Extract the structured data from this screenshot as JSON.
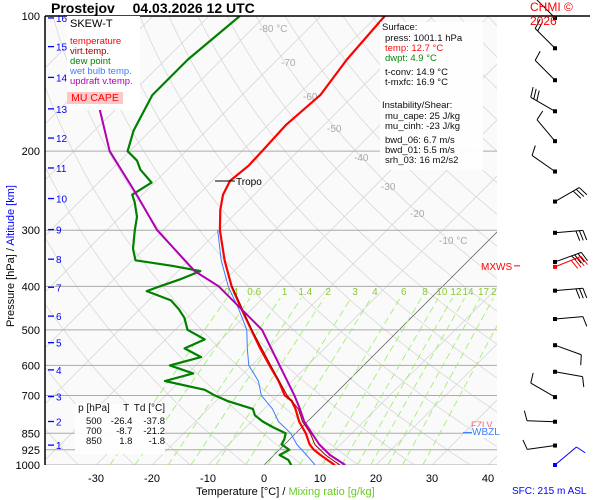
{
  "header": {
    "station": "Prostejov",
    "datetime": "04.03.2026 12 UTC",
    "copyright": "CHMI © 2026"
  },
  "legend": {
    "title": "SKEW-T",
    "items": [
      {
        "label": "temperature",
        "color": "#ff0000"
      },
      {
        "label": "virt.temp.",
        "color": "#a00000"
      },
      {
        "label": "dew point",
        "color": "#008000"
      },
      {
        "label": "wet bulb temp.",
        "color": "#3a7dff"
      },
      {
        "label": "updraft v.temp.",
        "color": "#b000b0"
      }
    ],
    "badge": "MU CAPE"
  },
  "surface": {
    "title": "Surface:",
    "press": "press: 1001.1 hPa",
    "temp": "temp: 12.7 °C",
    "dwpt": "dwpt: 4.9 °C",
    "tconv": "t-conv: 14.9 °C",
    "tmxfc": "t-mxfc: 16.9 °C"
  },
  "instability": {
    "title": "Instability/Shear:",
    "mu_cape": "mu_cape: 25 J/kg",
    "mu_cinh": "mu_cinh: -23 J/kg",
    "bwd_06": "bwd_06: 6.7 m/s",
    "bwd_01": "bwd_01: 5.5 m/s",
    "srh_03": "srh_03: 16 m2/s2"
  },
  "table": {
    "headers": [
      "p [hPa]",
      "T",
      "Td [°C]"
    ],
    "rows": [
      [
        "500",
        "-26.4",
        "-37.8"
      ],
      [
        "700",
        "-8.7",
        "-21.2"
      ],
      [
        "850",
        "1.8",
        "-1.8"
      ]
    ]
  },
  "annotations": {
    "tropo": "Tropo",
    "mxws": "MXWS",
    "fzlv": "FZLV",
    "wbzl": "WBZL",
    "sfc": "SFC: 215 m ASL"
  },
  "chart_data": {
    "type": "line",
    "title": "Prostejov 04.03.2026 12 UTC",
    "xlabel": "Temperature [°C]",
    "xlabel_sep": "/",
    "xlabel2": "Mixing ratio [g/kg]",
    "ylabel": "Pressure [hPa]",
    "ylabel_sep": "/",
    "ylabel2": "Altitude [km]",
    "xlim": [
      -37,
      44
    ],
    "ylim": [
      1000,
      100
    ],
    "x_ticks": [
      -30,
      -20,
      -10,
      0,
      10,
      20,
      30,
      40
    ],
    "pressure_ticks": [
      100,
      200,
      300,
      400,
      500,
      600,
      700,
      850,
      925,
      1000
    ],
    "altitude_ticks": [
      {
        "km": 16,
        "p": 101
      },
      {
        "km": 15,
        "p": 117
      },
      {
        "km": 14,
        "p": 137
      },
      {
        "km": 13,
        "p": 161
      },
      {
        "km": 12,
        "p": 187
      },
      {
        "km": 11,
        "p": 218
      },
      {
        "km": 10,
        "p": 255
      },
      {
        "km": 9,
        "p": 299
      },
      {
        "km": 8,
        "p": 348
      },
      {
        "km": 7,
        "p": 402
      },
      {
        "km": 6,
        "p": 466
      },
      {
        "km": 5,
        "p": 534
      },
      {
        "km": 4,
        "p": 614
      },
      {
        "km": 3,
        "p": 704
      },
      {
        "km": 2,
        "p": 800
      },
      {
        "km": 1,
        "p": 903
      }
    ],
    "isotherm_labels": [
      {
        "t": -80,
        "text": "-80 °C"
      },
      {
        "t": -70,
        "text": "-70"
      },
      {
        "t": -60,
        "text": "-60"
      },
      {
        "t": -50,
        "text": "-50"
      },
      {
        "t": -40,
        "text": "-40"
      },
      {
        "t": -30,
        "text": "-30"
      },
      {
        "t": -20,
        "text": "-20"
      },
      {
        "t": -10,
        "text": "-10 °C"
      }
    ],
    "mixing_ratios": [
      "0.4",
      "0.6",
      "1",
      "1.4",
      "2",
      "3",
      "4",
      "6",
      "8",
      "10",
      "12",
      "14",
      "17",
      "20",
      "25"
    ],
    "series": [
      {
        "name": "temperature",
        "color": "#ff0000",
        "p": [
          1001,
          975,
          950,
          925,
          900,
          850,
          800,
          750,
          720,
          700,
          650,
          600,
          550,
          500,
          450,
          400,
          350,
          300,
          270,
          250,
          233,
          215,
          200,
          175,
          150,
          125,
          100
        ],
        "t": [
          12.7,
          10.5,
          8.3,
          6.2,
          4.5,
          1.8,
          -1.5,
          -4.4,
          -6.5,
          -8.7,
          -12.4,
          -16.8,
          -21.5,
          -26.4,
          -31.8,
          -37.7,
          -43.6,
          -49.8,
          -53.4,
          -55.6,
          -56.8,
          -56.2,
          -56.4,
          -56.8,
          -56.0,
          -57.6,
          -58.6
        ]
      },
      {
        "name": "virt.temp.",
        "color": "#a00000",
        "p": [
          1001,
          950,
          900,
          850,
          800,
          750,
          700,
          600,
          500,
          400
        ],
        "t": [
          13.6,
          9.2,
          5.4,
          2.6,
          -0.9,
          -3.9,
          -8.3,
          -16.6,
          -26.3,
          -37.6
        ]
      },
      {
        "name": "dew point",
        "color": "#008000",
        "p": [
          1001,
          975,
          950,
          925,
          900,
          875,
          850,
          825,
          800,
          775,
          750,
          720,
          700,
          680,
          650,
          625,
          600,
          575,
          550,
          525,
          500,
          470,
          450,
          430,
          410,
          400,
          385,
          370,
          360,
          350,
          330,
          300,
          280,
          260,
          250,
          235,
          220,
          210,
          200,
          180,
          150,
          125,
          100
        ],
        "t": [
          4.9,
          3.5,
          1.0,
          1.8,
          -0.5,
          -1.0,
          -1.8,
          -5.0,
          -8.0,
          -10.5,
          -12.0,
          -18.0,
          -21.2,
          -24.0,
          -32.7,
          -29.0,
          -34.6,
          -30.5,
          -35.0,
          -33.0,
          -37.8,
          -40.5,
          -43.0,
          -46.0,
          -52.0,
          -50.5,
          -48.0,
          -46.0,
          -52.0,
          -59.5,
          -62.0,
          -65.0,
          -67.0,
          -70.0,
          -71.8,
          -70.5,
          -74.8,
          -77.0,
          -80.4,
          -83.0,
          -86.0,
          -86.0,
          -84.5
        ]
      },
      {
        "name": "wet bulb temp.",
        "color": "#3a7dff",
        "p": [
          1001,
          950,
          900,
          850,
          800,
          750,
          700,
          650,
          600,
          550,
          500,
          450,
          400,
          350,
          300
        ],
        "t": [
          9.2,
          5.8,
          2.2,
          -0.9,
          -5.2,
          -8.5,
          -12.9,
          -16.0,
          -20.5,
          -23.8,
          -27.2,
          -32.3,
          -38.3,
          -44.2,
          -50.2
        ]
      },
      {
        "name": "updraft v.temp.",
        "color": "#b000b0",
        "p": [
          1000,
          950,
          900,
          850,
          800,
          750,
          700,
          600,
          500,
          400,
          370,
          300,
          250,
          200,
          150,
          100
        ],
        "t": [
          14.5,
          10.0,
          6.2,
          2.9,
          -0.6,
          -3.6,
          -7.0,
          -15.0,
          -24.5,
          -40.0,
          -47.0,
          -61.0,
          -71.0,
          -83.6,
          -96.0,
          -111.0
        ]
      }
    ],
    "tropopause_p": 233,
    "mxws_p": 362,
    "wbzl_p": 855,
    "fzlv_p": 852,
    "wind_barbs": [
      {
        "p": 101,
        "dir": 315,
        "kt": 10
      },
      {
        "p": 118,
        "dir": 315,
        "kt": 20
      },
      {
        "p": 139,
        "dir": 315,
        "kt": 10
      },
      {
        "p": 163,
        "dir": 300,
        "kt": 30
      },
      {
        "p": 190,
        "dir": 320,
        "kt": 10
      },
      {
        "p": 222,
        "dir": 305,
        "kt": 10
      },
      {
        "p": 259,
        "dir": 60,
        "kt": 30
      },
      {
        "p": 304,
        "dir": 85,
        "kt": 30
      },
      {
        "p": 353,
        "dir": 70,
        "kt": 35
      },
      {
        "p": 362,
        "dir": 68,
        "kt": 40,
        "color": "#ff0000"
      },
      {
        "p": 409,
        "dir": 85,
        "kt": 30
      },
      {
        "p": 473,
        "dir": 85,
        "kt": 10
      },
      {
        "p": 541,
        "dir": 110,
        "kt": 10
      },
      {
        "p": 620,
        "dir": 100,
        "kt": 10
      },
      {
        "p": 706,
        "dir": 300,
        "kt": 10
      },
      {
        "p": 801,
        "dir": 272,
        "kt": 10
      },
      {
        "p": 905,
        "dir": 262,
        "kt": 10
      },
      {
        "p": 1000,
        "dir": 50,
        "kt": 10,
        "color": "#0000ff"
      }
    ]
  }
}
